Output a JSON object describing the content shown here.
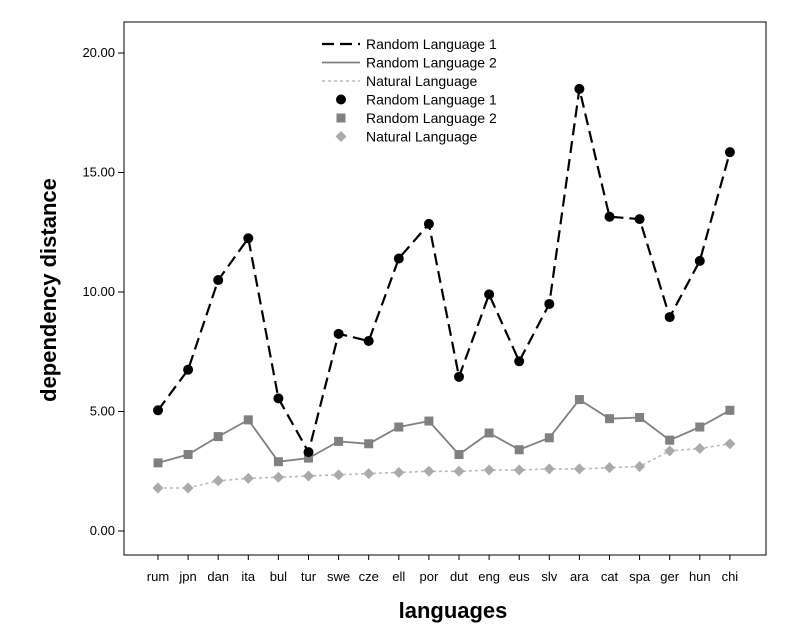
{
  "chart_data": {
    "type": "line",
    "title": "",
    "xlabel": "languages",
    "ylabel": "dependency distance",
    "ylim": [
      -1,
      22.5
    ],
    "yticks": [
      0,
      5,
      10,
      15,
      20
    ],
    "ytick_labels": [
      "0.00",
      "5.00",
      "10.00",
      "15.00",
      "20.00"
    ],
    "grid": false,
    "legend_position": "top-center",
    "categories": [
      "rum",
      "jpn",
      "dan",
      "ita",
      "bul",
      "tur",
      "swe",
      "cze",
      "ell",
      "por",
      "dut",
      "eng",
      "eus",
      "slv",
      "ara",
      "cat",
      "spa",
      "ger",
      "hun",
      "chi"
    ],
    "series": [
      {
        "name": "Random Language 1",
        "line_style": "dashed",
        "marker": "circle",
        "color": "#000000",
        "values": [
          5.05,
          6.75,
          10.5,
          12.25,
          5.55,
          3.3,
          8.25,
          7.95,
          11.4,
          12.85,
          6.45,
          9.9,
          7.1,
          9.5,
          18.5,
          13.15,
          13.05,
          8.95,
          11.3,
          15.85
        ]
      },
      {
        "name": "Random Language 2",
        "line_style": "solid",
        "marker": "square",
        "color": "#808080",
        "values": [
          2.85,
          3.2,
          3.95,
          4.65,
          2.9,
          3.05,
          3.75,
          3.65,
          4.35,
          4.6,
          3.2,
          4.1,
          3.4,
          3.9,
          5.5,
          4.7,
          4.75,
          3.8,
          4.35,
          5.05
        ]
      },
      {
        "name": "Natural  Language",
        "line_style": "dotted",
        "marker": "diamond",
        "color": "#aaaaaa",
        "values": [
          1.8,
          1.8,
          2.1,
          2.2,
          2.25,
          2.3,
          2.35,
          2.4,
          2.45,
          2.5,
          2.5,
          2.55,
          2.55,
          2.6,
          2.6,
          2.65,
          2.7,
          3.35,
          3.45,
          3.65
        ]
      }
    ],
    "legend_entries": [
      {
        "label": "Random Language 1",
        "kind": "line",
        "series": 0
      },
      {
        "label": "Random Language 2",
        "kind": "line",
        "series": 1
      },
      {
        "label": "Natural  Language",
        "kind": "line",
        "series": 2
      },
      {
        "label": "Random Language 1",
        "kind": "marker",
        "series": 0
      },
      {
        "label": "Random Language 2",
        "kind": "marker",
        "series": 1
      },
      {
        "label": "Natural  Language",
        "kind": "marker",
        "series": 2
      }
    ]
  }
}
